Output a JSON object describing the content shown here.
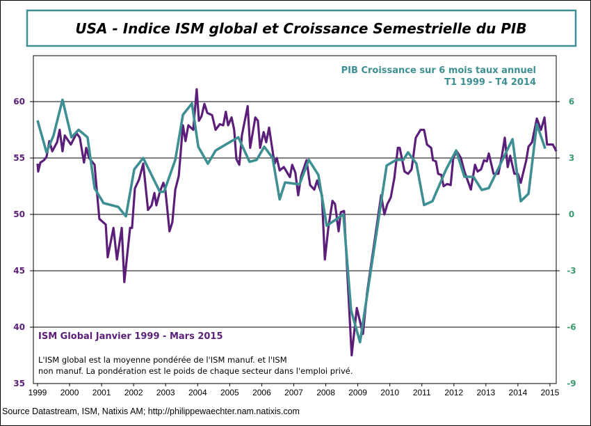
{
  "chart_data": {
    "type": "line",
    "title": "USA - Indice ISM global et Croissance Semestrielle du PIB",
    "x_ticks": [
      "1999",
      "2000",
      "2001",
      "2002",
      "2003",
      "2004",
      "2005",
      "2006",
      "2007",
      "2008",
      "2009",
      "2010",
      "2011",
      "2012",
      "2013",
      "2014",
      "2015"
    ],
    "xlim": [
      1999,
      2015.25
    ],
    "y_left": {
      "ylim": [
        35,
        60
      ],
      "ticks": [
        "35",
        "40",
        "45",
        "50",
        "55",
        "60"
      ],
      "color": "#5b1f7a"
    },
    "y_right": {
      "ylim": [
        -9,
        6
      ],
      "ticks": [
        "-9",
        "-6",
        "-3",
        "0",
        "3",
        "6"
      ],
      "color": "#3a9a6e"
    },
    "grid": true,
    "series": [
      {
        "name": "ISM Global Janvier 1999 - Mars 2015",
        "axis": "left",
        "color": "#5b1f7a",
        "points": [
          [
            1999.0,
            54.5
          ],
          [
            1999.02,
            53.8
          ],
          [
            1999.09,
            54.6
          ],
          [
            1999.2,
            54.8
          ],
          [
            1999.28,
            55.1
          ],
          [
            1999.37,
            56.5
          ],
          [
            1999.46,
            55.6
          ],
          [
            1999.61,
            56.4
          ],
          [
            1999.69,
            57.5
          ],
          [
            1999.78,
            55.6
          ],
          [
            1999.85,
            57.0
          ],
          [
            2000.04,
            56.2
          ],
          [
            2000.22,
            57.2
          ],
          [
            2000.32,
            56.8
          ],
          [
            2000.45,
            54.6
          ],
          [
            2000.52,
            55.9
          ],
          [
            2000.61,
            55.0
          ],
          [
            2000.78,
            54.4
          ],
          [
            2000.93,
            49.6
          ],
          [
            2001.13,
            49.1
          ],
          [
            2001.19,
            46.2
          ],
          [
            2001.37,
            48.8
          ],
          [
            2001.48,
            46.0
          ],
          [
            2001.63,
            48.8
          ],
          [
            2001.71,
            44.0
          ],
          [
            2001.89,
            48.8
          ],
          [
            2001.95,
            48.8
          ],
          [
            2002.04,
            52.3
          ],
          [
            2002.17,
            53.1
          ],
          [
            2002.3,
            54.5
          ],
          [
            2002.45,
            50.4
          ],
          [
            2002.56,
            50.8
          ],
          [
            2002.65,
            51.9
          ],
          [
            2002.71,
            50.8
          ],
          [
            2002.82,
            52.0
          ],
          [
            2002.93,
            52.8
          ],
          [
            2002.99,
            52.2
          ],
          [
            2003.12,
            48.5
          ],
          [
            2003.21,
            49.3
          ],
          [
            2003.3,
            52.2
          ],
          [
            2003.41,
            53.4
          ],
          [
            2003.54,
            57.9
          ],
          [
            2003.62,
            56.5
          ],
          [
            2003.71,
            57.9
          ],
          [
            2003.86,
            57.5
          ],
          [
            2003.97,
            61.1
          ],
          [
            2004.04,
            58.3
          ],
          [
            2004.12,
            58.7
          ],
          [
            2004.21,
            59.8
          ],
          [
            2004.3,
            59.0
          ],
          [
            2004.45,
            58.8
          ],
          [
            2004.56,
            57.5
          ],
          [
            2004.69,
            58.0
          ],
          [
            2004.8,
            57.9
          ],
          [
            2004.88,
            59.1
          ],
          [
            2004.95,
            57.9
          ],
          [
            2005.06,
            58.6
          ],
          [
            2005.14,
            57.5
          ],
          [
            2005.21,
            54.9
          ],
          [
            2005.3,
            54.4
          ],
          [
            2005.38,
            57.0
          ],
          [
            2005.56,
            59.6
          ],
          [
            2005.64,
            55.9
          ],
          [
            2005.8,
            58.6
          ],
          [
            2005.88,
            58.3
          ],
          [
            2005.95,
            55.9
          ],
          [
            2006.06,
            57.3
          ],
          [
            2006.14,
            56.4
          ],
          [
            2006.23,
            57.7
          ],
          [
            2006.4,
            54.5
          ],
          [
            2006.47,
            55.0
          ],
          [
            2006.56,
            53.9
          ],
          [
            2006.69,
            54.2
          ],
          [
            2006.88,
            53.3
          ],
          [
            2006.95,
            54.4
          ],
          [
            2007.05,
            53.7
          ],
          [
            2007.14,
            51.7
          ],
          [
            2007.23,
            53.4
          ],
          [
            2007.4,
            54.8
          ],
          [
            2007.51,
            52.6
          ],
          [
            2007.64,
            52.2
          ],
          [
            2007.73,
            53.0
          ],
          [
            2007.88,
            51.7
          ],
          [
            2007.97,
            46.0
          ],
          [
            2008.08,
            48.8
          ],
          [
            2008.21,
            51.2
          ],
          [
            2008.29,
            50.9
          ],
          [
            2008.4,
            48.5
          ],
          [
            2008.47,
            50.2
          ],
          [
            2008.57,
            50.3
          ],
          [
            2008.81,
            37.5
          ],
          [
            2008.97,
            41.7
          ],
          [
            2009.16,
            39.4
          ],
          [
            2009.29,
            43.1
          ],
          [
            2009.49,
            47.0
          ],
          [
            2009.73,
            51.7
          ],
          [
            2009.83,
            50.0
          ],
          [
            2009.92,
            50.9
          ],
          [
            2010.03,
            51.5
          ],
          [
            2010.14,
            53.2
          ],
          [
            2010.25,
            55.9
          ],
          [
            2010.31,
            55.9
          ],
          [
            2010.46,
            53.8
          ],
          [
            2010.57,
            53.6
          ],
          [
            2010.68,
            54.0
          ],
          [
            2010.81,
            56.8
          ],
          [
            2010.96,
            57.5
          ],
          [
            2011.07,
            57.5
          ],
          [
            2011.16,
            56.2
          ],
          [
            2011.29,
            55.9
          ],
          [
            2011.35,
            54.8
          ],
          [
            2011.44,
            54.7
          ],
          [
            2011.51,
            53.6
          ],
          [
            2011.61,
            53.5
          ],
          [
            2011.68,
            52.5
          ],
          [
            2011.79,
            52.7
          ],
          [
            2011.9,
            52.6
          ],
          [
            2011.98,
            55.0
          ],
          [
            2012.09,
            55.6
          ],
          [
            2012.22,
            55.0
          ],
          [
            2012.33,
            53.8
          ],
          [
            2012.53,
            52.2
          ],
          [
            2012.66,
            54.4
          ],
          [
            2012.74,
            53.8
          ],
          [
            2012.85,
            54.0
          ],
          [
            2012.94,
            54.8
          ],
          [
            2013.03,
            54.7
          ],
          [
            2013.09,
            55.4
          ],
          [
            2013.24,
            53.6
          ],
          [
            2013.39,
            53.6
          ],
          [
            2013.5,
            55.2
          ],
          [
            2013.59,
            56.8
          ],
          [
            2013.68,
            54.2
          ],
          [
            2013.76,
            55.2
          ],
          [
            2013.89,
            53.6
          ],
          [
            2014.0,
            53.6
          ],
          [
            2014.09,
            52.8
          ],
          [
            2014.26,
            54.8
          ],
          [
            2014.33,
            56.0
          ],
          [
            2014.44,
            56.4
          ],
          [
            2014.59,
            58.5
          ],
          [
            2014.72,
            57.5
          ],
          [
            2014.83,
            58.6
          ],
          [
            2014.91,
            56.2
          ],
          [
            2015.09,
            56.2
          ],
          [
            2015.2,
            55.6
          ]
        ]
      },
      {
        "name": "PIB Croissance sur 6 mois taux annuel",
        "axis": "right",
        "color": "#3d8f92",
        "points": [
          [
            1999.0,
            5.0
          ],
          [
            1999.28,
            3.3
          ],
          [
            1999.5,
            4.2
          ],
          [
            1999.78,
            6.1
          ],
          [
            2000.06,
            4.1
          ],
          [
            2000.28,
            4.5
          ],
          [
            2000.56,
            4.1
          ],
          [
            2000.78,
            1.4
          ],
          [
            2001.06,
            0.6
          ],
          [
            2001.52,
            0.4
          ],
          [
            2001.76,
            -0.1
          ],
          [
            2002.02,
            2.4
          ],
          [
            2002.3,
            3.0
          ],
          [
            2002.82,
            1.2
          ],
          [
            2002.95,
            1.2
          ],
          [
            2003.3,
            2.9
          ],
          [
            2003.54,
            5.3
          ],
          [
            2003.82,
            5.9
          ],
          [
            2004.02,
            3.6
          ],
          [
            2004.32,
            2.7
          ],
          [
            2004.56,
            3.4
          ],
          [
            2005.06,
            3.9
          ],
          [
            2005.27,
            4.1
          ],
          [
            2005.62,
            2.8
          ],
          [
            2005.84,
            2.9
          ],
          [
            2006.08,
            3.6
          ],
          [
            2006.34,
            3.0
          ],
          [
            2006.56,
            0.8
          ],
          [
            2006.73,
            1.7
          ],
          [
            2007.18,
            1.6
          ],
          [
            2007.47,
            2.9
          ],
          [
            2007.77,
            2.1
          ],
          [
            2008.03,
            -0.6
          ],
          [
            2008.55,
            0.0
          ],
          [
            2008.79,
            -5.1
          ],
          [
            2009.07,
            -6.8
          ],
          [
            2009.9,
            2.6
          ],
          [
            2010.2,
            2.9
          ],
          [
            2010.42,
            2.9
          ],
          [
            2010.57,
            3.3
          ],
          [
            2010.83,
            2.7
          ],
          [
            2011.07,
            0.5
          ],
          [
            2011.33,
            0.7
          ],
          [
            2011.76,
            2.4
          ],
          [
            2012.07,
            3.4
          ],
          [
            2012.33,
            2.0
          ],
          [
            2012.61,
            2.0
          ],
          [
            2012.87,
            1.3
          ],
          [
            2013.09,
            1.4
          ],
          [
            2013.83,
            4.0
          ],
          [
            2014.09,
            0.7
          ],
          [
            2014.33,
            1.1
          ],
          [
            2014.59,
            4.8
          ],
          [
            2014.85,
            3.5
          ]
        ]
      }
    ],
    "annotations": {
      "gdp_label_line1": "PIB Croissance sur 6 mois taux annuel",
      "gdp_label_line2": "T1 1999 - T4 2014",
      "ism_label": "ISM Global Janvier 1999 - Mars 2015",
      "note_line1": "L'ISM global est la moyenne pondérée de l'ISM manuf.  et l'ISM",
      "note_line2": "non manuf.  La pondération  est le poids de chaque secteur dans l'emploi  privé."
    },
    "source": "Source Datastream, ISM, Natixis AM; http://philippewaechter.nam.natixis.com"
  }
}
